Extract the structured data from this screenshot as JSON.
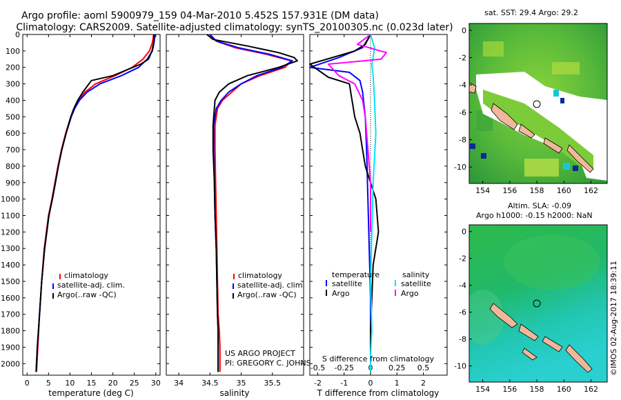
{
  "header": {
    "line1": "Argo profile: aoml 5900979_159 04-Mar-2010 5.452S 157.931E (DM data)",
    "line2": "Climatology: CARS2009. Satellite-adjusted climatology: synTS_20100305.nc (0.023d later)"
  },
  "colors": {
    "clim": "#ff0000",
    "sat": "#0000ff",
    "argo": "#000000",
    "s_sat": "#00e5ff",
    "s_argo": "#ff00ff"
  },
  "credits": {
    "line1": "US ARGO PROJECT",
    "line2": "PI: GREGORY C. JOHNSON"
  },
  "watermark": "©IMOS 02-Aug-2017 18:39:11",
  "legends": {
    "profile": [
      "climatology",
      "satellite-adj. clim.",
      "Argo(..raw -QC)"
    ],
    "diff_t_title": "temperature",
    "diff_s_title": "salinity",
    "diff_items": [
      "satellite",
      "Argo"
    ]
  },
  "maps": {
    "top": {
      "title": "sat. SST: 29.4 Argo: 29.2",
      "xticks": [
        "154",
        "156",
        "158",
        "160",
        "162"
      ],
      "yticks": [
        "0",
        "-2",
        "-4",
        "-6",
        "-8",
        "-10"
      ]
    },
    "bottom": {
      "title1": "Altim. SLA: -0.09",
      "title2": "Argo h1000: -0.15 h2000: NaN",
      "xticks": [
        "154",
        "156",
        "158",
        "160",
        "162"
      ],
      "yticks": [
        "0",
        "-2",
        "-4",
        "-6",
        "-8",
        "-10"
      ]
    }
  },
  "chart_data": [
    {
      "type": "line",
      "xlabel": "temperature (deg C)",
      "xlim": [
        -1,
        31
      ],
      "ylim": [
        2070,
        0
      ],
      "xticks": [
        0,
        5,
        10,
        15,
        20,
        25,
        30
      ],
      "yticks": [
        0,
        100,
        200,
        300,
        400,
        500,
        600,
        700,
        800,
        900,
        1000,
        1100,
        1200,
        1300,
        1400,
        1500,
        1600,
        1700,
        1800,
        1900,
        2000
      ],
      "series": [
        {
          "name": "climatology",
          "color": "#ff0000",
          "x": [
            29.5,
            29.2,
            28.5,
            27,
            24.5,
            20.5,
            16,
            13.5,
            12,
            11,
            10.2,
            9,
            8,
            7.2,
            6.5,
            5.8,
            5,
            4.5,
            4,
            3.4,
            2.9,
            2.5,
            2.2
          ],
          "y": [
            0,
            50,
            100,
            150,
            200,
            250,
            300,
            350,
            400,
            450,
            500,
            600,
            700,
            800,
            900,
            1000,
            1100,
            1200,
            1300,
            1500,
            1700,
            1900,
            2050
          ]
        },
        {
          "name": "satellite-adj. clim.",
          "color": "#0000ff",
          "x": [
            29.8,
            29.6,
            29.2,
            28,
            26,
            22,
            17,
            14,
            12.2,
            11.1,
            10.3,
            9.1,
            8.1,
            7.3,
            6.6,
            5.9,
            5.1,
            4.6,
            4.1,
            3.4,
            2.9,
            2.4,
            2.1
          ],
          "y": [
            0,
            50,
            100,
            150,
            200,
            250,
            300,
            350,
            400,
            450,
            500,
            600,
            700,
            800,
            900,
            1000,
            1100,
            1200,
            1300,
            1500,
            1700,
            1900,
            2050
          ]
        },
        {
          "name": "Argo(..raw -QC)",
          "color": "#000000",
          "x": [
            29.6,
            29.5,
            29.1,
            28.3,
            26.5,
            20,
            15,
            13,
            11.8,
            10.9,
            10.2,
            9.1,
            8.1,
            7.3,
            6.6,
            5.9,
            5.1,
            4.6,
            4.1,
            3.4,
            2.9,
            2.4,
            2.1
          ],
          "y": [
            0,
            50,
            100,
            150,
            180,
            250,
            280,
            350,
            400,
            450,
            500,
            600,
            700,
            800,
            900,
            1000,
            1100,
            1200,
            1300,
            1500,
            1700,
            1900,
            2050
          ]
        }
      ]
    },
    {
      "type": "line",
      "xlabel": "salinity",
      "xlim": [
        33.8,
        36.0
      ],
      "ylim": [
        2070,
        0
      ],
      "xticks": [
        34,
        34.5,
        35,
        35.5
      ],
      "series": [
        {
          "name": "climatology",
          "color": "#ff0000",
          "x": [
            34.5,
            34.6,
            34.9,
            35.4,
            35.8,
            35.7,
            35.3,
            35,
            34.85,
            34.7,
            34.62,
            34.58,
            34.58,
            34.59,
            34.6,
            34.61,
            34.62,
            34.63,
            34.65,
            34.66,
            34.66
          ],
          "y": [
            0,
            40,
            80,
            120,
            160,
            200,
            250,
            300,
            350,
            400,
            450,
            550,
            700,
            900,
            1100,
            1300,
            1500,
            1700,
            1800,
            1900,
            2050
          ]
        },
        {
          "name": "satellite-adj. clim.",
          "color": "#0000ff",
          "x": [
            34.5,
            34.6,
            34.95,
            35.45,
            35.82,
            35.65,
            35.25,
            35,
            34.8,
            34.68,
            34.6,
            34.56,
            34.56,
            34.57,
            34.58,
            34.6,
            34.61,
            34.62,
            34.63,
            34.63,
            34.63
          ],
          "y": [
            0,
            40,
            80,
            120,
            160,
            200,
            250,
            300,
            350,
            400,
            450,
            550,
            700,
            900,
            1100,
            1300,
            1500,
            1700,
            1800,
            1900,
            2050
          ]
        },
        {
          "name": "Argo(..raw -QC)",
          "color": "#000000",
          "x": [
            34.45,
            34.55,
            35.1,
            35.6,
            35.85,
            35.9,
            35.6,
            35.1,
            34.8,
            34.65,
            34.58,
            34.55,
            34.55,
            34.57,
            34.58,
            34.6,
            34.61,
            34.62,
            34.63,
            34.63,
            34.63
          ],
          "y": [
            0,
            30,
            70,
            110,
            140,
            160,
            200,
            250,
            300,
            350,
            400,
            550,
            700,
            900,
            1100,
            1300,
            1500,
            1700,
            1800,
            1900,
            2050
          ]
        }
      ]
    },
    {
      "type": "line",
      "xlabel": "T difference from climatology",
      "xlabel_top": "S difference from climatology",
      "xlim": [
        -2.3,
        2.9
      ],
      "ylim": [
        2070,
        0
      ],
      "xticks": [
        -2,
        -1,
        0,
        1,
        2
      ],
      "xticks_s": [
        "-0.5",
        "-0.25",
        "0",
        "0.25",
        "0.5"
      ],
      "series": [
        {
          "name": "temperature satellite",
          "color": "#0000ff",
          "x": [
            0,
            -0.3,
            -1.2,
            -2.3,
            -0.8,
            -0.4,
            -0.3,
            -0.2,
            -0.15,
            -0.1,
            -0.05,
            0,
            0,
            0
          ],
          "y": [
            0,
            80,
            140,
            200,
            230,
            280,
            350,
            500,
            700,
            1000,
            1300,
            1600,
            1900,
            2050
          ]
        },
        {
          "name": "temperature Argo",
          "color": "#000000",
          "x": [
            0,
            -0.2,
            -0.6,
            -2.3,
            -1.6,
            -0.8,
            -0.7,
            -0.6,
            -0.4,
            -0.3,
            -0.2,
            0.2,
            0.3,
            0.1,
            0.05,
            0,
            0
          ],
          "y": [
            0,
            60,
            100,
            180,
            260,
            300,
            400,
            500,
            600,
            700,
            800,
            1000,
            1200,
            1400,
            1600,
            1800,
            2050
          ]
        },
        {
          "name": "salinity satellite",
          "color": "#00e5ff",
          "x": [
            0,
            0.15,
            0.1,
            0.05,
            0.1,
            0.15,
            0.2,
            0.1,
            0.05,
            0,
            0.05,
            0,
            0
          ],
          "y": [
            0,
            80,
            140,
            180,
            250,
            400,
            600,
            900,
            1200,
            1500,
            1800,
            1950,
            2050
          ]
        },
        {
          "name": "salinity Argo",
          "color": "#ff00ff",
          "x": [
            0,
            -0.5,
            0.6,
            0.4,
            -1.6,
            -1.2,
            -0.6,
            -0.3,
            -0.2,
            -0.1,
            0,
            0
          ],
          "y": [
            0,
            60,
            110,
            150,
            180,
            250,
            300,
            400,
            500,
            700,
            900,
            1200
          ]
        }
      ]
    }
  ]
}
